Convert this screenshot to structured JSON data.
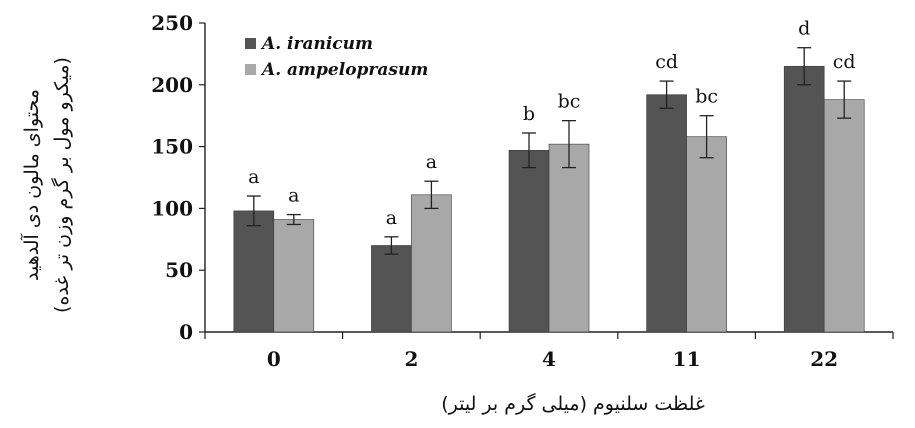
{
  "chart_data": {
    "type": "bar",
    "categories": [
      "0",
      "2",
      "4",
      "11",
      "22"
    ],
    "series": [
      {
        "name": "A. iranicum",
        "color": "#545454",
        "values": [
          98,
          70,
          147,
          192,
          215
        ],
        "errors": [
          12,
          7,
          14,
          11,
          15
        ],
        "labels": [
          "a",
          "a",
          "b",
          "cd",
          "d"
        ]
      },
      {
        "name": "A. ampeloprasum",
        "color": "#a8a8a8",
        "values": [
          91,
          111,
          152,
          158,
          188
        ],
        "errors": [
          4,
          11,
          19,
          17,
          15
        ],
        "labels": [
          "a",
          "a",
          "bc",
          "bc",
          "cd"
        ]
      }
    ],
    "ylim": [
      0,
      250
    ],
    "yticks": [
      "0",
      "50",
      "100",
      "150",
      "200",
      "250"
    ],
    "ytick_values": [
      0,
      50,
      100,
      150,
      200,
      250
    ],
    "xlabel": "غلظت سلنیوم (میلی گرم بر لیتر)",
    "ylabel_line1": "محتوای مالون دی آلدهید",
    "ylabel_line2": "(میکرو مول بر گرم وزن تر غده)",
    "grid": false,
    "legend_position": "top-left"
  }
}
